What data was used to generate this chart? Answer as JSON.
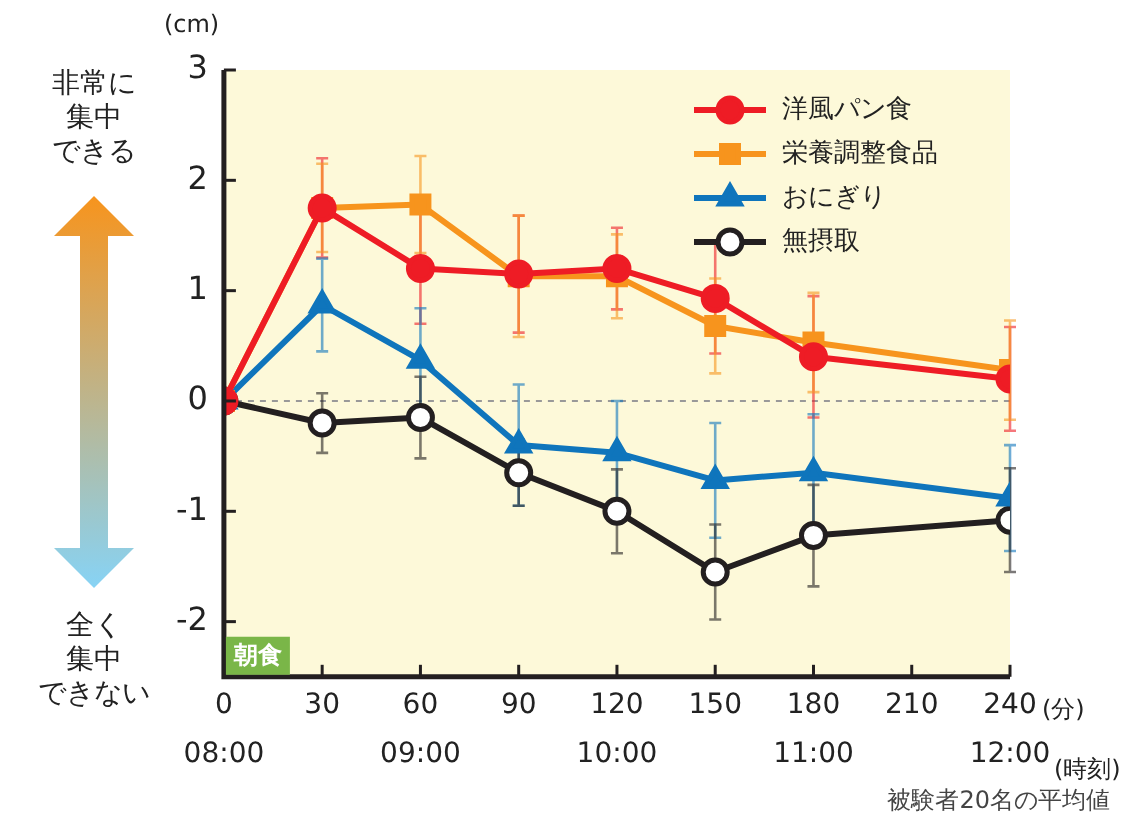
{
  "chart_data": {
    "type": "line",
    "x": [
      0,
      30,
      60,
      90,
      120,
      150,
      180,
      240
    ],
    "series": [
      {
        "name": "洋風パン食",
        "color": "#ee1c25",
        "marker": "circle",
        "values": [
          0,
          1.75,
          1.2,
          1.15,
          1.2,
          0.93,
          0.4,
          0.2
        ],
        "errors": [
          null,
          0.45,
          0.5,
          0.53,
          0.37,
          0.5,
          0.55,
          0.47
        ]
      },
      {
        "name": "栄養調整食品",
        "color": "#f7941d",
        "marker": "square",
        "values": [
          0,
          1.75,
          1.78,
          1.13,
          1.13,
          0.68,
          0.53,
          0.28
        ],
        "errors": [
          null,
          0.4,
          0.44,
          0.55,
          0.38,
          0.43,
          0.45,
          0.45
        ]
      },
      {
        "name": "おにぎり",
        "color": "#0f75bc",
        "marker": "triangle",
        "values": [
          0,
          0.87,
          0.37,
          -0.4,
          -0.47,
          -0.72,
          -0.65,
          -0.88
        ],
        "errors": [
          null,
          0.42,
          0.47,
          0.55,
          0.47,
          0.52,
          0.53,
          0.48
        ]
      },
      {
        "name": "無摂取",
        "color": "#231f20",
        "marker": "circle",
        "values": [
          0,
          -0.2,
          -0.15,
          -0.65,
          -1.0,
          -1.55,
          -1.22,
          -1.08
        ],
        "errors": [
          null,
          0.27,
          0.37,
          0.3,
          0.38,
          0.43,
          0.46,
          0.47
        ]
      }
    ],
    "xlabel": "(分)",
    "x2label": "(時刻)",
    "ylabel": "(cm)",
    "xlim": [
      0,
      240
    ],
    "xticks": [
      0,
      30,
      60,
      90,
      120,
      150,
      180,
      210,
      240
    ],
    "x2lim": [
      8,
      12
    ],
    "x2ticks": [
      {
        "value": 8,
        "label": "08:00"
      },
      {
        "value": 9,
        "label": "09:00"
      },
      {
        "value": 10,
        "label": "10:00"
      },
      {
        "value": 11,
        "label": "11:00"
      },
      {
        "value": 12,
        "label": "12:00"
      }
    ],
    "ylim": [
      -2.5,
      3
    ],
    "yticks": [
      -2,
      -1,
      0,
      1,
      2,
      3
    ],
    "ref_lines": [
      {
        "axis": "y",
        "value": 0,
        "color": "#999999",
        "line_style": "dashed"
      }
    ],
    "annotations": [
      "被験者20名の平均値",
      "非常に",
      "集中",
      "できる",
      "全く",
      "集中",
      "できない",
      "朝食"
    ],
    "grid": false,
    "legend": "top right"
  }
}
